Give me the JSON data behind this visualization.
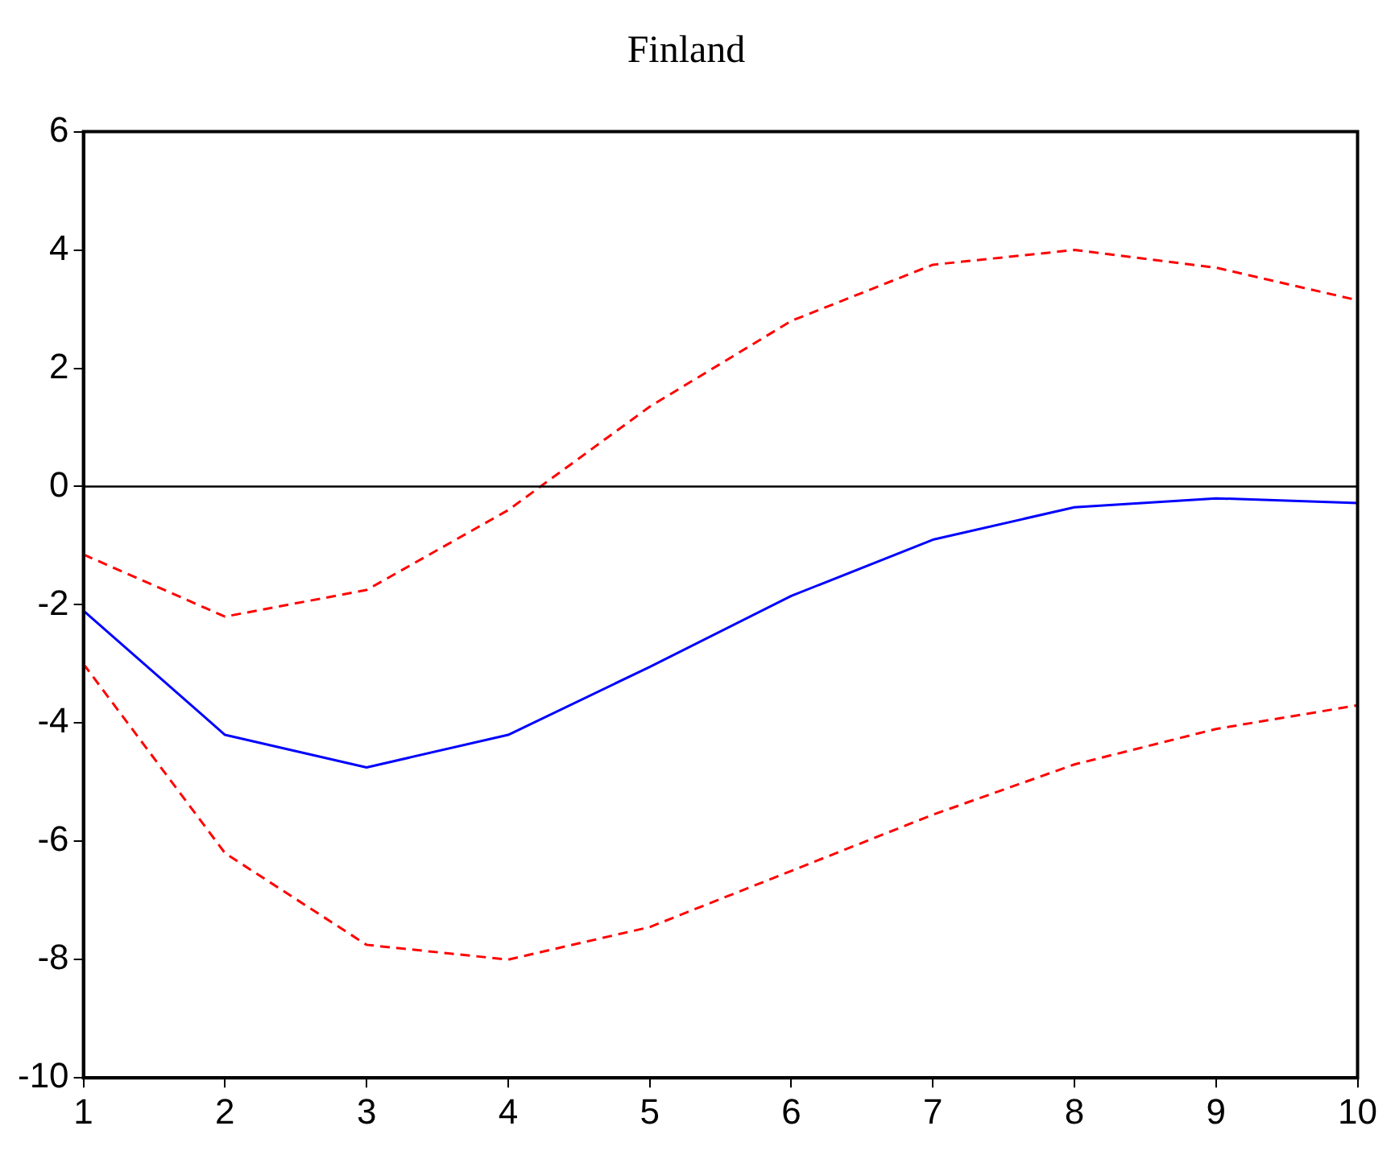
{
  "chart_data": {
    "type": "line",
    "title": "Finland",
    "x": [
      1,
      2,
      3,
      4,
      5,
      6,
      7,
      8,
      9,
      10
    ],
    "series": [
      {
        "color": "#0000ff",
        "line_style": "solid",
        "values": [
          -2.1,
          -4.2,
          -4.75,
          -4.2,
          -3.05,
          -1.85,
          -0.9,
          -0.35,
          -0.2,
          -0.28
        ]
      },
      {
        "color": "#ff0000",
        "line_style": "dashed",
        "values": [
          -1.15,
          -2.2,
          -1.75,
          -0.4,
          1.35,
          2.8,
          3.75,
          4.0,
          3.7,
          3.15
        ]
      },
      {
        "color": "#ff0000",
        "line_style": "dashed",
        "values": [
          -3.0,
          -6.2,
          -7.75,
          -8.0,
          -7.45,
          -6.5,
          -5.55,
          -4.7,
          -4.1,
          -3.7
        ]
      }
    ],
    "xlim": [
      1,
      10
    ],
    "xticks": [
      1,
      2,
      3,
      4,
      5,
      6,
      7,
      8,
      9,
      10
    ],
    "ylim": [
      -10,
      6
    ],
    "yticks": [
      -10,
      -8,
      -6,
      -4,
      -2,
      0,
      2,
      4,
      6
    ],
    "ref_lines": [
      {
        "axis": "y",
        "value": 0,
        "color": "#000000"
      }
    ],
    "grid": false,
    "legend": false,
    "marker": "none"
  }
}
